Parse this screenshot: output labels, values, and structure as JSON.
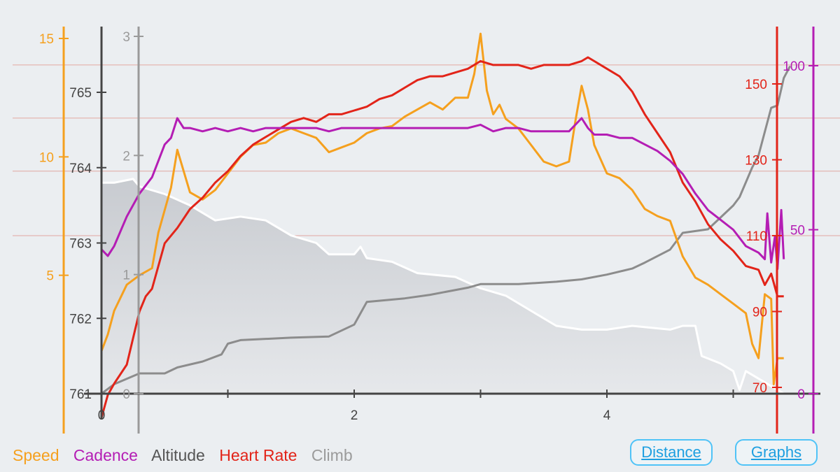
{
  "chart_data": {
    "type": "line",
    "x_axis": {
      "ticks": [
        0,
        2,
        4
      ],
      "range": [
        0,
        5.5
      ]
    },
    "axes": {
      "speed": {
        "ticks": [
          5,
          10,
          15
        ],
        "range": [
          0,
          15.2
        ]
      },
      "altitude": {
        "ticks": [
          761,
          762,
          763,
          764,
          765
        ],
        "range": [
          761,
          765.8
        ]
      },
      "climb": {
        "ticks": [
          0,
          1,
          2,
          3
        ],
        "range": [
          0,
          3
        ]
      },
      "heart_rate": {
        "ticks": [
          70,
          90,
          110,
          130,
          150
        ],
        "range": [
          62,
          157
        ]
      },
      "cadence": {
        "ticks": [
          0,
          50,
          100
        ],
        "range": [
          0,
          100
        ]
      }
    },
    "grid_heart_rate": [
      110,
      127,
      141,
      155
    ],
    "series": [
      {
        "name": "Altitude",
        "axis": "altitude",
        "color": "#ffffff",
        "fill": true,
        "points": [
          [
            0,
            763.8
          ],
          [
            0.1,
            763.8
          ],
          [
            0.25,
            763.85
          ],
          [
            0.3,
            763.75
          ],
          [
            0.5,
            763.65
          ],
          [
            0.7,
            763.5
          ],
          [
            0.9,
            763.3
          ],
          [
            1.1,
            763.35
          ],
          [
            1.3,
            763.3
          ],
          [
            1.5,
            763.1
          ],
          [
            1.7,
            763.0
          ],
          [
            1.8,
            762.85
          ],
          [
            2.0,
            762.85
          ],
          [
            2.05,
            762.95
          ],
          [
            2.1,
            762.8
          ],
          [
            2.3,
            762.75
          ],
          [
            2.5,
            762.6
          ],
          [
            2.8,
            762.55
          ],
          [
            3.0,
            762.4
          ],
          [
            3.2,
            762.3
          ],
          [
            3.4,
            762.1
          ],
          [
            3.6,
            761.9
          ],
          [
            3.8,
            761.85
          ],
          [
            4.0,
            761.85
          ],
          [
            4.2,
            761.9
          ],
          [
            4.5,
            761.85
          ],
          [
            4.6,
            761.9
          ],
          [
            4.7,
            761.9
          ],
          [
            4.75,
            761.5
          ],
          [
            4.9,
            761.4
          ],
          [
            5.0,
            761.3
          ],
          [
            5.05,
            761.05
          ],
          [
            5.1,
            761.3
          ],
          [
            5.2,
            761.2
          ],
          [
            5.3,
            761.1
          ],
          [
            5.4,
            761.0
          ]
        ]
      },
      {
        "name": "Climb",
        "axis": "climb",
        "color": "#8c8c8c",
        "fill": false,
        "points": [
          [
            0,
            0
          ],
          [
            0.1,
            0.08
          ],
          [
            0.3,
            0.17
          ],
          [
            0.5,
            0.17
          ],
          [
            0.6,
            0.22
          ],
          [
            0.8,
            0.27
          ],
          [
            0.95,
            0.33
          ],
          [
            1.0,
            0.42
          ],
          [
            1.1,
            0.45
          ],
          [
            1.5,
            0.47
          ],
          [
            1.8,
            0.48
          ],
          [
            2.0,
            0.58
          ],
          [
            2.1,
            0.77
          ],
          [
            2.4,
            0.8
          ],
          [
            2.6,
            0.83
          ],
          [
            2.9,
            0.89
          ],
          [
            3.0,
            0.92
          ],
          [
            3.3,
            0.92
          ],
          [
            3.6,
            0.94
          ],
          [
            3.8,
            0.96
          ],
          [
            4.0,
            1.0
          ],
          [
            4.2,
            1.05
          ],
          [
            4.3,
            1.1
          ],
          [
            4.5,
            1.21
          ],
          [
            4.6,
            1.35
          ],
          [
            4.8,
            1.38
          ],
          [
            4.9,
            1.48
          ],
          [
            5.0,
            1.58
          ],
          [
            5.05,
            1.65
          ],
          [
            5.15,
            1.9
          ],
          [
            5.2,
            2.0
          ],
          [
            5.3,
            2.4
          ],
          [
            5.35,
            2.42
          ],
          [
            5.4,
            2.65
          ],
          [
            5.45,
            2.75
          ]
        ]
      },
      {
        "name": "Speed",
        "axis": "speed",
        "color": "#f5a01e",
        "fill": false,
        "points": [
          [
            0,
            1.8
          ],
          [
            0.05,
            2.5
          ],
          [
            0.1,
            3.5
          ],
          [
            0.2,
            4.6
          ],
          [
            0.3,
            5.0
          ],
          [
            0.4,
            5.3
          ],
          [
            0.45,
            6.8
          ],
          [
            0.55,
            8.7
          ],
          [
            0.6,
            10.3
          ],
          [
            0.7,
            8.5
          ],
          [
            0.8,
            8.2
          ],
          [
            0.9,
            8.6
          ],
          [
            1.0,
            9.3
          ],
          [
            1.1,
            10.0
          ],
          [
            1.2,
            10.5
          ],
          [
            1.3,
            10.6
          ],
          [
            1.4,
            11.0
          ],
          [
            1.5,
            11.2
          ],
          [
            1.6,
            11.0
          ],
          [
            1.7,
            10.8
          ],
          [
            1.8,
            10.2
          ],
          [
            1.9,
            10.4
          ],
          [
            2.0,
            10.6
          ],
          [
            2.1,
            11.0
          ],
          [
            2.2,
            11.2
          ],
          [
            2.3,
            11.3
          ],
          [
            2.4,
            11.7
          ],
          [
            2.5,
            12.0
          ],
          [
            2.6,
            12.3
          ],
          [
            2.7,
            12.0
          ],
          [
            2.8,
            12.5
          ],
          [
            2.9,
            12.5
          ],
          [
            2.95,
            13.5
          ],
          [
            3.0,
            15.2
          ],
          [
            3.05,
            12.8
          ],
          [
            3.1,
            11.8
          ],
          [
            3.15,
            12.2
          ],
          [
            3.2,
            11.6
          ],
          [
            3.3,
            11.2
          ],
          [
            3.4,
            10.5
          ],
          [
            3.5,
            9.8
          ],
          [
            3.6,
            9.6
          ],
          [
            3.7,
            9.8
          ],
          [
            3.75,
            11.5
          ],
          [
            3.8,
            13.0
          ],
          [
            3.85,
            12.0
          ],
          [
            3.9,
            10.5
          ],
          [
            4.0,
            9.3
          ],
          [
            4.1,
            9.1
          ],
          [
            4.2,
            8.6
          ],
          [
            4.3,
            7.8
          ],
          [
            4.4,
            7.5
          ],
          [
            4.5,
            7.3
          ],
          [
            4.6,
            5.8
          ],
          [
            4.7,
            4.9
          ],
          [
            4.8,
            4.6
          ],
          [
            4.9,
            4.2
          ],
          [
            5.0,
            3.8
          ],
          [
            5.1,
            3.4
          ],
          [
            5.15,
            2.1
          ],
          [
            5.2,
            1.5
          ],
          [
            5.25,
            4.2
          ],
          [
            5.3,
            4.0
          ],
          [
            5.32,
            0.4
          ],
          [
            5.35,
            1.5
          ],
          [
            5.4,
            1.5
          ]
        ]
      },
      {
        "name": "Heart Rate",
        "axis": "heart_rate",
        "color": "#e22419",
        "fill": false,
        "points": [
          [
            0,
            62
          ],
          [
            0.05,
            68
          ],
          [
            0.1,
            71
          ],
          [
            0.2,
            76
          ],
          [
            0.3,
            90
          ],
          [
            0.35,
            94
          ],
          [
            0.4,
            96
          ],
          [
            0.5,
            108
          ],
          [
            0.6,
            112
          ],
          [
            0.7,
            117
          ],
          [
            0.8,
            120
          ],
          [
            0.9,
            124
          ],
          [
            1.0,
            127
          ],
          [
            1.1,
            131
          ],
          [
            1.2,
            134
          ],
          [
            1.3,
            136
          ],
          [
            1.4,
            138
          ],
          [
            1.5,
            140
          ],
          [
            1.6,
            141
          ],
          [
            1.7,
            140
          ],
          [
            1.8,
            142
          ],
          [
            1.9,
            142
          ],
          [
            2.0,
            143
          ],
          [
            2.1,
            144
          ],
          [
            2.2,
            146
          ],
          [
            2.3,
            147
          ],
          [
            2.4,
            149
          ],
          [
            2.5,
            151
          ],
          [
            2.6,
            152
          ],
          [
            2.7,
            152
          ],
          [
            2.8,
            153
          ],
          [
            2.9,
            154
          ],
          [
            3.0,
            156
          ],
          [
            3.1,
            155
          ],
          [
            3.2,
            155
          ],
          [
            3.3,
            155
          ],
          [
            3.4,
            154
          ],
          [
            3.5,
            155
          ],
          [
            3.6,
            155
          ],
          [
            3.7,
            155
          ],
          [
            3.8,
            156
          ],
          [
            3.85,
            157
          ],
          [
            3.9,
            156
          ],
          [
            4.0,
            154
          ],
          [
            4.1,
            152
          ],
          [
            4.2,
            148
          ],
          [
            4.3,
            142
          ],
          [
            4.4,
            137
          ],
          [
            4.5,
            132
          ],
          [
            4.6,
            124
          ],
          [
            4.7,
            119
          ],
          [
            4.8,
            113
          ],
          [
            4.9,
            109
          ],
          [
            5.0,
            106
          ],
          [
            5.1,
            102
          ],
          [
            5.2,
            101
          ],
          [
            5.25,
            97
          ],
          [
            5.3,
            100
          ],
          [
            5.35,
            94
          ],
          [
            5.4,
            94
          ]
        ]
      },
      {
        "name": "Cadence",
        "axis": "cadence",
        "color": "#b41db4",
        "fill": false,
        "points": [
          [
            0,
            44
          ],
          [
            0.05,
            42
          ],
          [
            0.1,
            45
          ],
          [
            0.2,
            54
          ],
          [
            0.3,
            61
          ],
          [
            0.4,
            66
          ],
          [
            0.5,
            76
          ],
          [
            0.55,
            78
          ],
          [
            0.6,
            84
          ],
          [
            0.65,
            81
          ],
          [
            0.7,
            81
          ],
          [
            0.8,
            80
          ],
          [
            0.9,
            81
          ],
          [
            1.0,
            80
          ],
          [
            1.1,
            81
          ],
          [
            1.2,
            80
          ],
          [
            1.3,
            81
          ],
          [
            1.4,
            81
          ],
          [
            1.5,
            81
          ],
          [
            1.6,
            81
          ],
          [
            1.7,
            81
          ],
          [
            1.8,
            80
          ],
          [
            1.9,
            81
          ],
          [
            2.0,
            81
          ],
          [
            2.1,
            81
          ],
          [
            2.2,
            81
          ],
          [
            2.3,
            81
          ],
          [
            2.4,
            81
          ],
          [
            2.5,
            81
          ],
          [
            2.6,
            81
          ],
          [
            2.7,
            81
          ],
          [
            2.8,
            81
          ],
          [
            2.9,
            81
          ],
          [
            3.0,
            82
          ],
          [
            3.1,
            80
          ],
          [
            3.2,
            81
          ],
          [
            3.3,
            81
          ],
          [
            3.4,
            80
          ],
          [
            3.5,
            80
          ],
          [
            3.6,
            80
          ],
          [
            3.7,
            80
          ],
          [
            3.8,
            84
          ],
          [
            3.85,
            81
          ],
          [
            3.9,
            79
          ],
          [
            4.0,
            79
          ],
          [
            4.1,
            78
          ],
          [
            4.2,
            78
          ],
          [
            4.3,
            76
          ],
          [
            4.4,
            74
          ],
          [
            4.5,
            71
          ],
          [
            4.6,
            67
          ],
          [
            4.7,
            61
          ],
          [
            4.8,
            56
          ],
          [
            4.9,
            53
          ],
          [
            5.0,
            50
          ],
          [
            5.1,
            45
          ],
          [
            5.2,
            43
          ],
          [
            5.25,
            41
          ],
          [
            5.27,
            55
          ],
          [
            5.3,
            40
          ],
          [
            5.33,
            48
          ],
          [
            5.35,
            38
          ],
          [
            5.38,
            56
          ],
          [
            5.4,
            41
          ]
        ]
      }
    ]
  },
  "legend": [
    {
      "label": "Speed",
      "color": "#f5a01e"
    },
    {
      "label": "Cadence",
      "color": "#b41db4"
    },
    {
      "label": "Altitude",
      "color": "#555555"
    },
    {
      "label": "Heart Rate",
      "color": "#e22419"
    },
    {
      "label": "Climb",
      "color": "#9b9b9b"
    }
  ],
  "buttons": {
    "distance": "Distance",
    "graphs": "Graphs"
  }
}
